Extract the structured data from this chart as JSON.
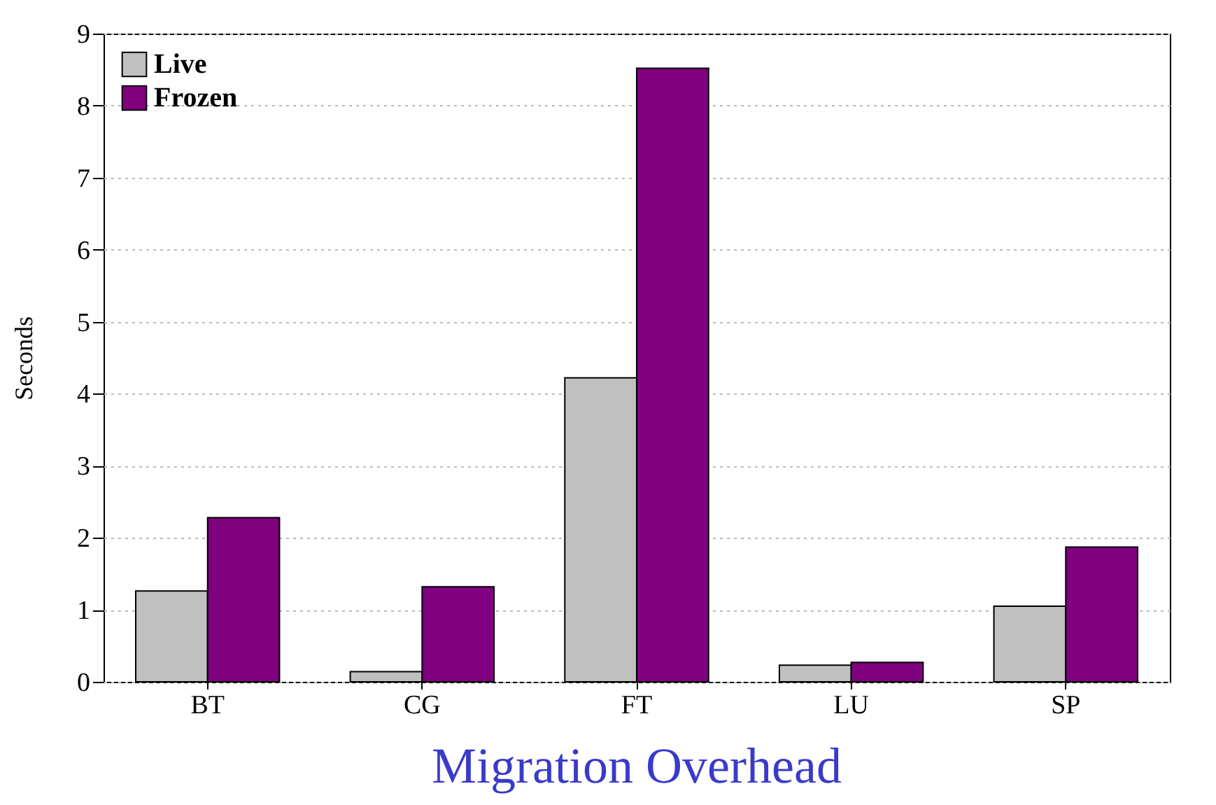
{
  "chart_data": {
    "type": "bar",
    "title": "Migration Overhead",
    "ylabel": "Seconds",
    "categories": [
      "BT",
      "CG",
      "FT",
      "LU",
      "SP"
    ],
    "series": [
      {
        "name": "Live",
        "color": "#c0c0c0",
        "values": [
          1.26,
          0.14,
          4.22,
          0.23,
          1.05
        ]
      },
      {
        "name": "Frozen",
        "color": "#800080",
        "values": [
          2.28,
          1.32,
          8.52,
          0.27,
          1.87
        ]
      }
    ],
    "ylim": [
      0,
      9
    ],
    "yticks": [
      0,
      1,
      2,
      3,
      4,
      5,
      6,
      7,
      8,
      9
    ],
    "grid": "y",
    "legend": "top left"
  }
}
